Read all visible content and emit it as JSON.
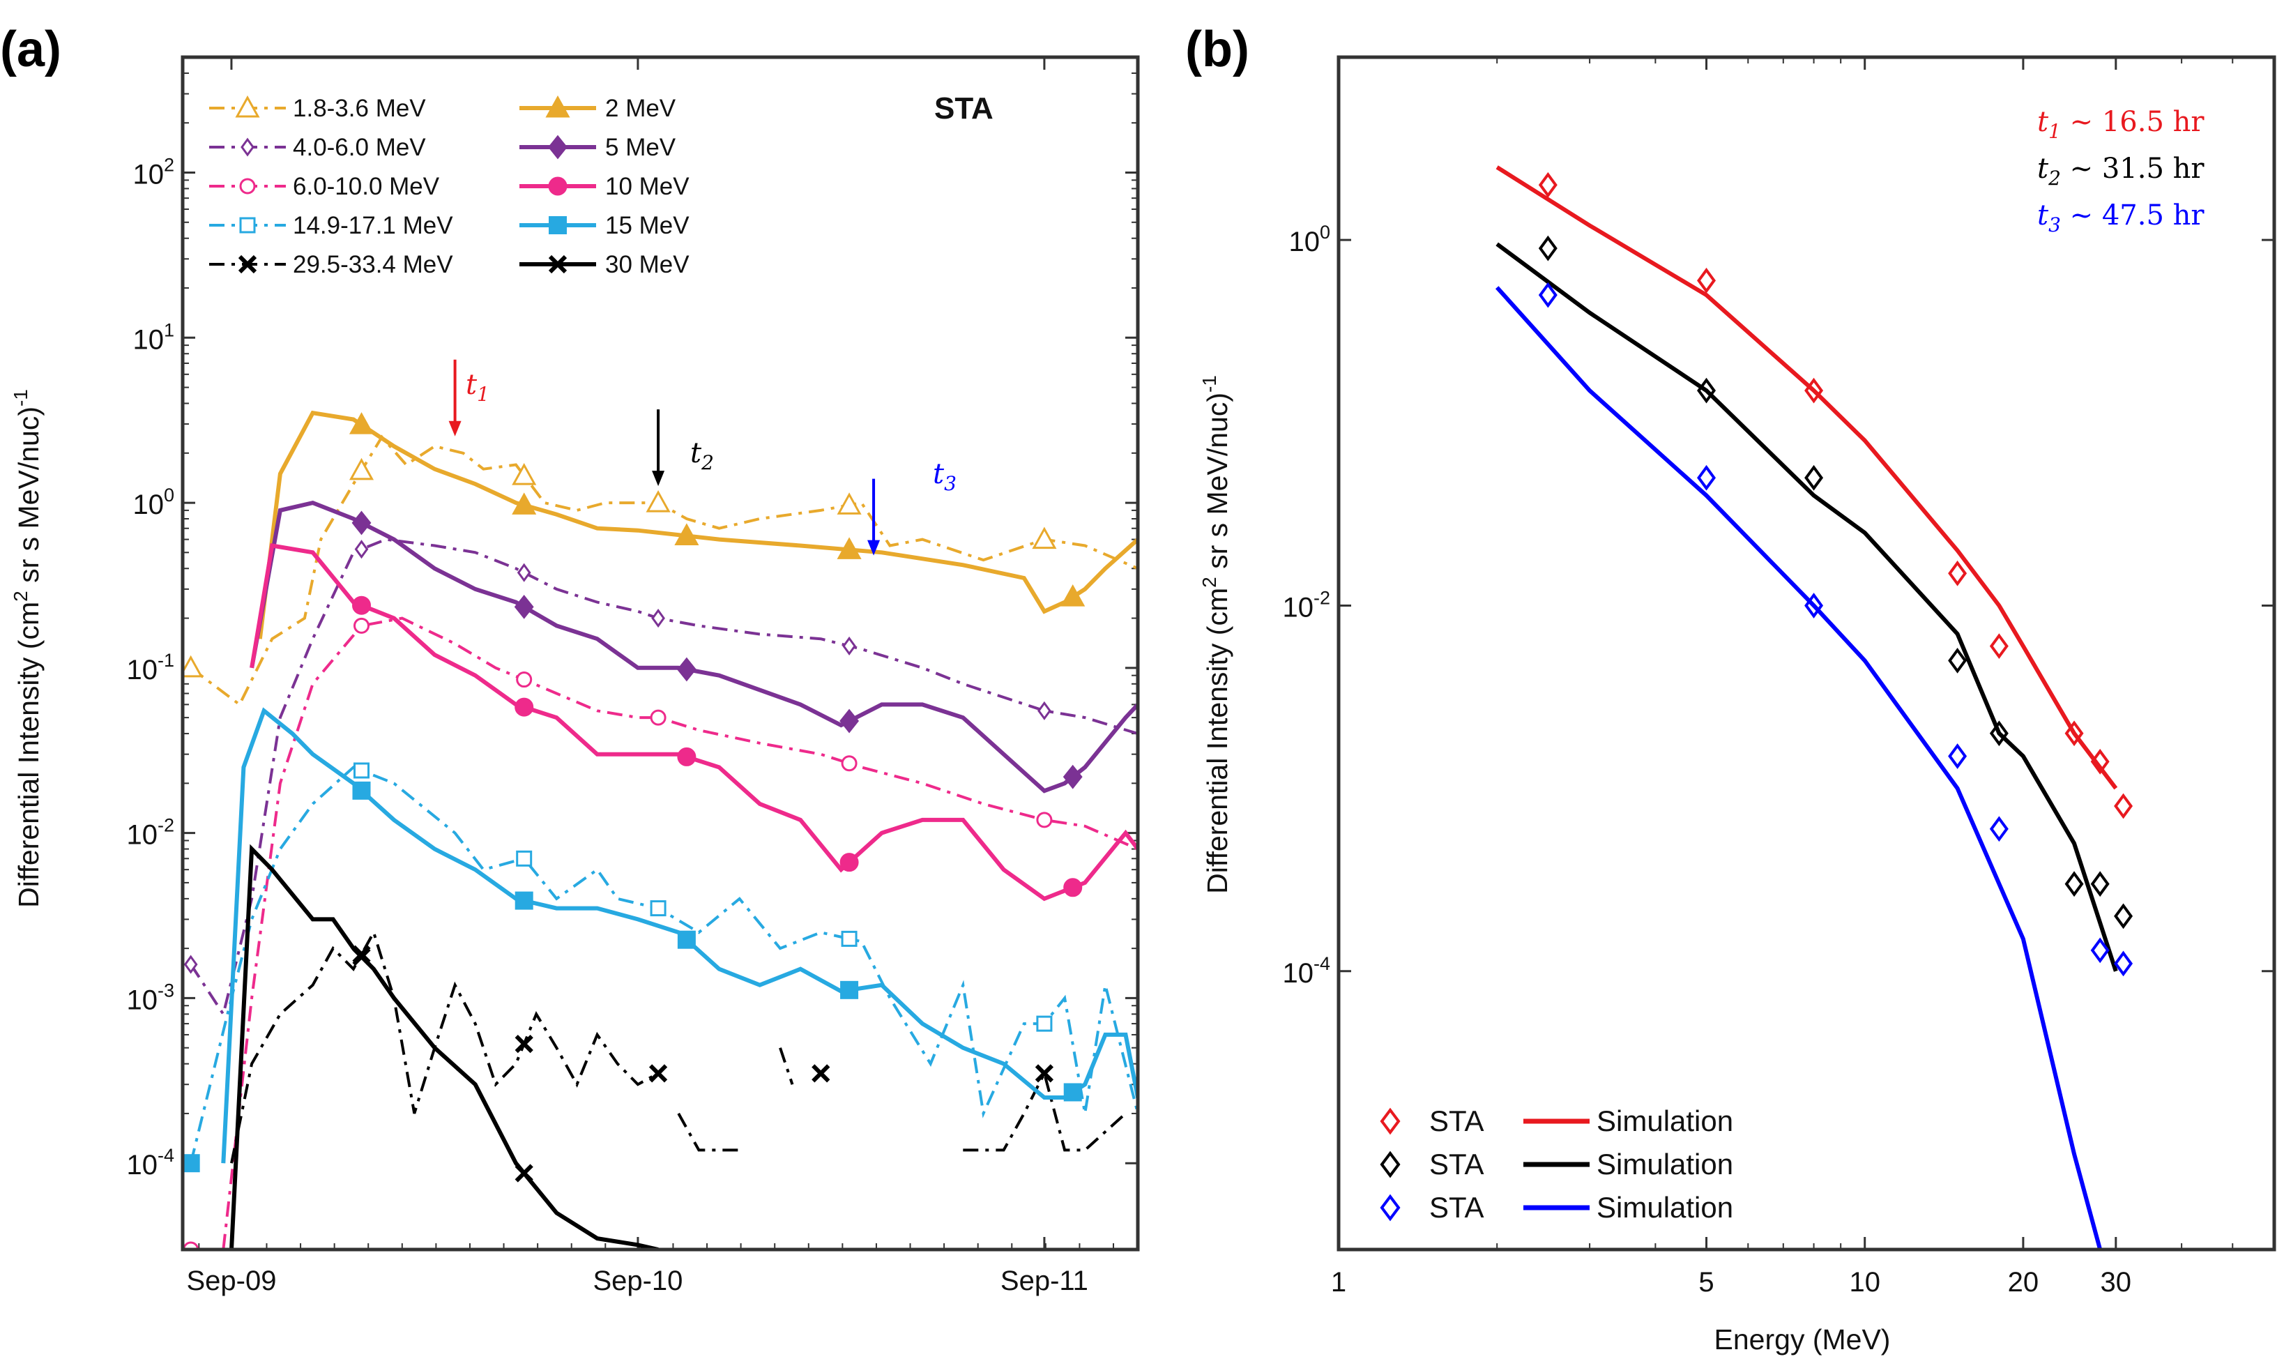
{
  "panel_a": {
    "label": "(a)",
    "inset_label": "STA",
    "ylabel": "Differential Intensity (cm² sr s MeV/nuc)⁻¹",
    "ylabel_base": "Differential Intensity (cm",
    "ylabel_sup1": "2",
    "ylabel_mid": " sr s MeV/nuc)",
    "ylabel_sup2": "-1",
    "annotations": [
      {
        "text": "t",
        "sub": "1",
        "color": "#e8191f"
      },
      {
        "text": "t",
        "sub": "2",
        "color": "#000000"
      },
      {
        "text": "t",
        "sub": "3",
        "color": "#0000ff"
      }
    ]
  },
  "panel_b": {
    "label": "(b)",
    "xlabel": "Energy (MeV)",
    "ylabel_base": "Differential Intensity (cm",
    "ylabel_sup1": "2",
    "ylabel_mid": " sr s MeV/nuc)",
    "ylabel_sup2": "-1",
    "time_labels": [
      {
        "t": "t",
        "sub": "1",
        "rest": " ~ 16.5 hr",
        "color": "#e8191f"
      },
      {
        "t": "t",
        "sub": "2",
        "rest": " ~ 31.5 hr",
        "color": "#000000"
      },
      {
        "t": "t",
        "sub": "3",
        "rest": " ~ 47.5 hr",
        "color": "#0000ff"
      }
    ],
    "legend": [
      {
        "marker": "STA",
        "line": "Simulation",
        "color": "#e8191f"
      },
      {
        "marker": "STA",
        "line": "Simulation",
        "color": "#000000"
      },
      {
        "marker": "STA",
        "line": "Simulation",
        "color": "#0000ff"
      }
    ]
  },
  "chart_data": [
    {
      "type": "line",
      "panel": "(a)",
      "x_unit": "days since Sep-09 00:00",
      "xlim": [
        -0.12,
        2.23
      ],
      "y_scale": "log",
      "ylim": [
        3e-05,
        500
      ],
      "x_ticks": [
        {
          "x": 0,
          "label": "Sep-09"
        },
        {
          "x": 1,
          "label": "Sep-10"
        },
        {
          "x": 2,
          "label": "Sep-11"
        }
      ],
      "y_ticks": [
        {
          "v": 0.0001,
          "b": "10",
          "e": "-4"
        },
        {
          "v": 0.001,
          "b": "10",
          "e": "-3"
        },
        {
          "v": 0.01,
          "b": "10",
          "e": "-2"
        },
        {
          "v": 0.1,
          "b": "10",
          "e": "-1"
        },
        {
          "v": 1,
          "b": "10",
          "e": "0"
        },
        {
          "v": 10,
          "b": "10",
          "e": "1"
        },
        {
          "v": 100,
          "b": "10",
          "e": "2"
        }
      ],
      "annotation_times": [
        0.55,
        1.05,
        1.58
      ],
      "annotation_tips": [
        2.0,
        1.0,
        0.38
      ],
      "observed": [
        {
          "name": "1.8-3.6 MeV",
          "color": "#e8a92c",
          "marker": "triangle",
          "dash": "22 10 5 10",
          "x": [
            -0.1,
            0.02,
            0.1,
            0.18,
            0.22,
            0.3,
            0.37,
            0.43,
            0.5,
            0.57,
            0.62,
            0.7,
            0.77,
            0.85,
            0.92,
            1.0,
            1.05,
            1.12,
            1.2,
            1.3,
            1.45,
            1.55,
            1.62,
            1.7,
            1.85,
            2.0,
            2.1,
            2.23
          ],
          "y": [
            0.1,
            0.06,
            0.15,
            0.2,
            0.6,
            1.3,
            2.5,
            1.7,
            2.2,
            2.0,
            1.6,
            1.7,
            1.0,
            0.9,
            1.0,
            1.0,
            1.0,
            0.8,
            0.7,
            0.8,
            0.9,
            1.0,
            0.55,
            0.6,
            0.45,
            0.6,
            0.55,
            0.4
          ],
          "mx": [
            -0.1,
            0.32,
            0.72,
            1.05,
            1.52,
            2.0
          ]
        },
        {
          "name": "4.0-6.0 MeV",
          "color": "#7b3294",
          "marker": "diamond-open",
          "dash": "22 10 5 10",
          "x": [
            -0.1,
            -0.02,
            0.05,
            0.12,
            0.2,
            0.3,
            0.38,
            0.5,
            0.6,
            0.7,
            0.8,
            0.9,
            1.0,
            1.05,
            1.15,
            1.3,
            1.45,
            1.55,
            1.7,
            1.8,
            2.0,
            2.1,
            2.23
          ],
          "y": [
            0.0016,
            0.0008,
            0.004,
            0.05,
            0.15,
            0.5,
            0.6,
            0.55,
            0.5,
            0.4,
            0.3,
            0.25,
            0.22,
            0.2,
            0.18,
            0.16,
            0.15,
            0.13,
            0.1,
            0.08,
            0.055,
            0.05,
            0.04
          ],
          "mx": [
            -0.1,
            0.32,
            0.72,
            1.05,
            1.52,
            2.0
          ]
        },
        {
          "name": "6.0-10.0 MeV",
          "color": "#ee2a8b",
          "marker": "circle-open",
          "dash": "22 10 5 10",
          "x": [
            -0.1,
            -0.02,
            0.05,
            0.12,
            0.2,
            0.32,
            0.42,
            0.55,
            0.65,
            0.72,
            0.8,
            0.9,
            1.0,
            1.05,
            1.15,
            1.3,
            1.45,
            1.55,
            1.7,
            1.85,
            2.0,
            2.1,
            2.23
          ],
          "y": [
            3e-05,
            3e-05,
            0.001,
            0.02,
            0.08,
            0.18,
            0.2,
            0.14,
            0.1,
            0.085,
            0.07,
            0.055,
            0.05,
            0.05,
            0.042,
            0.035,
            0.03,
            0.025,
            0.02,
            0.015,
            0.012,
            0.011,
            0.008
          ],
          "mx": [
            -0.1,
            0.32,
            0.72,
            1.05,
            1.52,
            2.0
          ]
        },
        {
          "name": "14.9-17.1 MeV",
          "color": "#27a9e1",
          "marker": "square-open",
          "dash": "22 10 5 10",
          "x": [
            -0.1,
            0.0,
            0.05,
            0.12,
            0.2,
            0.3,
            0.4,
            0.55,
            0.62,
            0.72,
            0.8,
            0.9,
            0.95,
            1.05,
            1.15,
            1.25,
            1.35,
            1.45,
            1.55,
            1.62,
            1.72,
            1.8,
            1.85,
            1.95,
            2.0,
            2.05,
            2.1,
            2.15,
            2.23
          ],
          "y": [
            0.0001,
            0.001,
            0.003,
            0.008,
            0.015,
            0.025,
            0.02,
            0.01,
            0.006,
            0.007,
            0.004,
            0.006,
            0.004,
            0.0035,
            0.0025,
            0.004,
            0.002,
            0.0025,
            0.0022,
            0.001,
            0.0004,
            0.0012,
            0.0002,
            0.0007,
            0.0007,
            0.001,
            0.0002,
            0.0012,
            0.0002
          ],
          "mx": [
            -0.1,
            0.32,
            0.72,
            1.05,
            1.52,
            2.0
          ]
        },
        {
          "name": "29.5-33.4 MeV",
          "color": "#000000",
          "marker": "x",
          "dash": "22 10 5 10",
          "segments": [
            {
              "x": [
                0.0,
                0.05,
                0.12,
                0.2,
                0.25,
                0.3,
                0.35,
                0.4,
                0.45,
                0.5,
                0.55,
                0.6,
                0.65,
                0.7,
                0.75,
                0.8,
                0.85,
                0.9,
                0.95,
                1.0,
                1.05
              ],
              "y": [
                0.0001,
                0.0004,
                0.0008,
                0.0012,
                0.002,
                0.0015,
                0.0025,
                0.001,
                0.0002,
                0.0005,
                0.0012,
                0.0007,
                0.0003,
                0.0004,
                0.0008,
                0.0005,
                0.0003,
                0.0006,
                0.0004,
                0.0003,
                0.00035
              ]
            },
            {
              "x": [
                1.1,
                1.15,
                1.25
              ],
              "y": [
                0.0002,
                0.00012,
                0.00012
              ]
            },
            {
              "x": [
                1.35,
                1.38
              ],
              "y": [
                0.0005,
                0.0003
              ]
            },
            {
              "x": [
                1.8,
                1.9,
                1.95,
                2.0,
                2.05,
                2.1,
                2.2
              ],
              "y": [
                0.00012,
                0.00012,
                0.0002,
                0.00035,
                0.00012,
                0.00012,
                0.0002
              ]
            }
          ],
          "mx": [
            0.32,
            0.72,
            1.05,
            1.45,
            2.0
          ]
        }
      ],
      "simulation": [
        {
          "name": "2 MeV",
          "color": "#e8a92c",
          "marker": "triangle",
          "x": [
            0.07,
            0.12,
            0.2,
            0.3,
            0.4,
            0.5,
            0.6,
            0.7,
            0.8,
            0.9,
            1.0,
            1.2,
            1.4,
            1.6,
            1.8,
            1.95,
            2.0,
            2.05,
            2.1,
            2.15,
            2.23
          ],
          "y": [
            0.15,
            1.5,
            3.5,
            3.2,
            2.2,
            1.6,
            1.3,
            1.0,
            0.85,
            0.7,
            0.68,
            0.6,
            0.55,
            0.5,
            0.42,
            0.35,
            0.22,
            0.25,
            0.3,
            0.4,
            0.6
          ],
          "mx": [
            0.32,
            0.72,
            1.12,
            1.52,
            2.07
          ]
        },
        {
          "name": "5 MeV",
          "color": "#7b3294",
          "marker": "diamond",
          "x": [
            0.05,
            0.12,
            0.2,
            0.3,
            0.4,
            0.5,
            0.6,
            0.7,
            0.8,
            0.9,
            1.0,
            1.1,
            1.2,
            1.4,
            1.5,
            1.6,
            1.7,
            1.8,
            1.9,
            2.0,
            2.05,
            2.1,
            2.2,
            2.23
          ],
          "y": [
            0.1,
            0.9,
            1.0,
            0.8,
            0.6,
            0.4,
            0.3,
            0.25,
            0.18,
            0.15,
            0.1,
            0.1,
            0.09,
            0.06,
            0.045,
            0.06,
            0.06,
            0.05,
            0.03,
            0.018,
            0.02,
            0.025,
            0.05,
            0.06
          ],
          "mx": [
            0.32,
            0.72,
            1.12,
            1.52,
            2.07
          ]
        },
        {
          "name": "10 MeV",
          "color": "#ee2a8b",
          "marker": "circle",
          "x": [
            0.05,
            0.1,
            0.2,
            0.3,
            0.4,
            0.5,
            0.6,
            0.7,
            0.8,
            0.9,
            1.0,
            1.1,
            1.2,
            1.3,
            1.4,
            1.5,
            1.6,
            1.7,
            1.8,
            1.9,
            2.0,
            2.1,
            2.2,
            2.23
          ],
          "y": [
            0.1,
            0.55,
            0.5,
            0.25,
            0.2,
            0.12,
            0.09,
            0.06,
            0.05,
            0.03,
            0.03,
            0.03,
            0.025,
            0.015,
            0.012,
            0.006,
            0.01,
            0.012,
            0.012,
            0.006,
            0.004,
            0.005,
            0.01,
            0.008
          ],
          "mx": [
            0.32,
            0.72,
            1.12,
            1.52,
            2.07
          ]
        },
        {
          "name": "15 MeV",
          "color": "#27a9e1",
          "marker": "square",
          "x": [
            -0.02,
            0.03,
            0.08,
            0.15,
            0.2,
            0.3,
            0.4,
            0.5,
            0.6,
            0.7,
            0.8,
            0.9,
            1.0,
            1.1,
            1.2,
            1.3,
            1.4,
            1.5,
            1.6,
            1.7,
            1.8,
            1.9,
            2.0,
            2.05,
            2.1,
            2.15,
            2.2,
            2.23
          ],
          "y": [
            0.0001,
            0.025,
            0.055,
            0.04,
            0.03,
            0.02,
            0.012,
            0.008,
            0.006,
            0.004,
            0.0035,
            0.0035,
            0.003,
            0.0025,
            0.0015,
            0.0012,
            0.0015,
            0.0011,
            0.0012,
            0.0007,
            0.0005,
            0.0004,
            0.00025,
            0.00025,
            0.0003,
            0.0006,
            0.0006,
            0.00025
          ],
          "mx": [
            -0.1,
            0.32,
            0.72,
            1.12,
            1.52,
            2.07
          ]
        },
        {
          "name": "30 MeV",
          "color": "#000000",
          "marker": "x",
          "x": [
            0.0,
            0.05,
            0.1,
            0.2,
            0.25,
            0.3,
            0.35,
            0.4,
            0.5,
            0.6,
            0.7,
            0.8,
            0.9,
            1.0,
            1.05
          ],
          "y": [
            3e-05,
            0.008,
            0.006,
            0.003,
            0.003,
            0.002,
            0.0015,
            0.001,
            0.0005,
            0.0003,
            0.0001,
            5e-05,
            3.5e-05,
            3.2e-05,
            3e-05
          ],
          "mx": [
            0.32,
            0.72
          ]
        }
      ]
    },
    {
      "type": "scatter",
      "panel": "(b)",
      "x_scale": "log",
      "xlim": [
        1,
        60
      ],
      "y_scale": "log",
      "ylim": [
        3e-06,
        10
      ],
      "x_ticks": [
        {
          "v": 1,
          "label": "1"
        },
        {
          "v": 5,
          "label": "5"
        },
        {
          "v": 10,
          "label": "10"
        },
        {
          "v": 20,
          "label": "20"
        },
        {
          "v": 30,
          "label": "30"
        }
      ],
      "y_ticks": [
        {
          "v": 0.0001,
          "b": "10",
          "e": "-4"
        },
        {
          "v": 0.01,
          "b": "10",
          "e": "-2"
        },
        {
          "v": 1,
          "b": "10",
          "e": "0"
        }
      ],
      "series": [
        {
          "name": "STA t1",
          "color": "#e8191f",
          "obs_x": [
            2.5,
            5,
            8,
            15,
            18,
            25,
            28,
            31
          ],
          "obs_y": [
            2.0,
            0.6,
            0.15,
            0.015,
            0.006,
            0.002,
            0.0014,
            0.0008
          ],
          "sim_x": [
            2,
            3,
            5,
            8,
            10,
            15,
            18,
            20,
            25,
            30
          ],
          "sim_y": [
            2.5,
            1.2,
            0.5,
            0.15,
            0.08,
            0.02,
            0.01,
            0.006,
            0.002,
            0.001
          ]
        },
        {
          "name": "STA t2",
          "color": "#000000",
          "obs_x": [
            2.5,
            5,
            8,
            15,
            18,
            25,
            28,
            31
          ],
          "obs_y": [
            0.9,
            0.15,
            0.05,
            0.005,
            0.002,
            0.0003,
            0.0003,
            0.0002
          ],
          "sim_x": [
            2,
            3,
            5,
            8,
            10,
            15,
            18,
            20,
            25,
            30
          ],
          "sim_y": [
            0.95,
            0.4,
            0.15,
            0.04,
            0.025,
            0.007,
            0.002,
            0.0015,
            0.0005,
            0.0001
          ]
        },
        {
          "name": "STA t3",
          "color": "#0000ff",
          "obs_x": [
            2.5,
            5,
            8,
            15,
            18,
            28,
            31
          ],
          "obs_y": [
            0.5,
            0.05,
            0.01,
            0.0015,
            0.0006,
            0.00013,
            0.00011
          ],
          "sim_x": [
            2,
            3,
            5,
            8,
            10,
            15,
            20,
            25,
            28
          ],
          "sim_y": [
            0.55,
            0.15,
            0.04,
            0.01,
            0.005,
            0.001,
            0.00015,
            1e-05,
            3e-06
          ]
        }
      ]
    }
  ]
}
